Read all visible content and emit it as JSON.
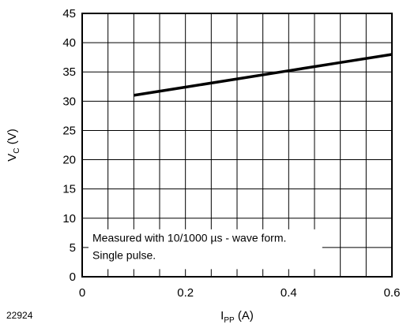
{
  "chart_data": {
    "type": "line",
    "title": "",
    "xlabel": {
      "main": "I",
      "sub": "PP",
      "unit": " (A)"
    },
    "ylabel": {
      "main": "V",
      "sub": "C",
      "unit": " (V)"
    },
    "xlim": [
      0,
      0.6
    ],
    "ylim": [
      0,
      45
    ],
    "xticks": [
      0,
      0.2,
      0.4,
      0.6
    ],
    "xtick_labels": [
      "0",
      "0.2",
      "0.4",
      "0.6"
    ],
    "yticks": [
      0,
      5,
      10,
      15,
      20,
      25,
      30,
      35,
      40,
      45
    ],
    "ytick_labels": [
      "0",
      "5",
      "10",
      "15",
      "20",
      "25",
      "30",
      "35",
      "40",
      "45"
    ],
    "x_minor_step": 0.05,
    "grid": true,
    "series": [
      {
        "x": [
          0.1,
          0.2,
          0.3,
          0.4,
          0.5,
          0.6
        ],
        "y": [
          31.0,
          32.4,
          33.8,
          35.2,
          36.6,
          38.0
        ],
        "color": "#000000"
      }
    ],
    "annotation": [
      "Measured with 10/1000 µs - wave form.",
      "Single pulse."
    ],
    "figure_id": "22924"
  }
}
